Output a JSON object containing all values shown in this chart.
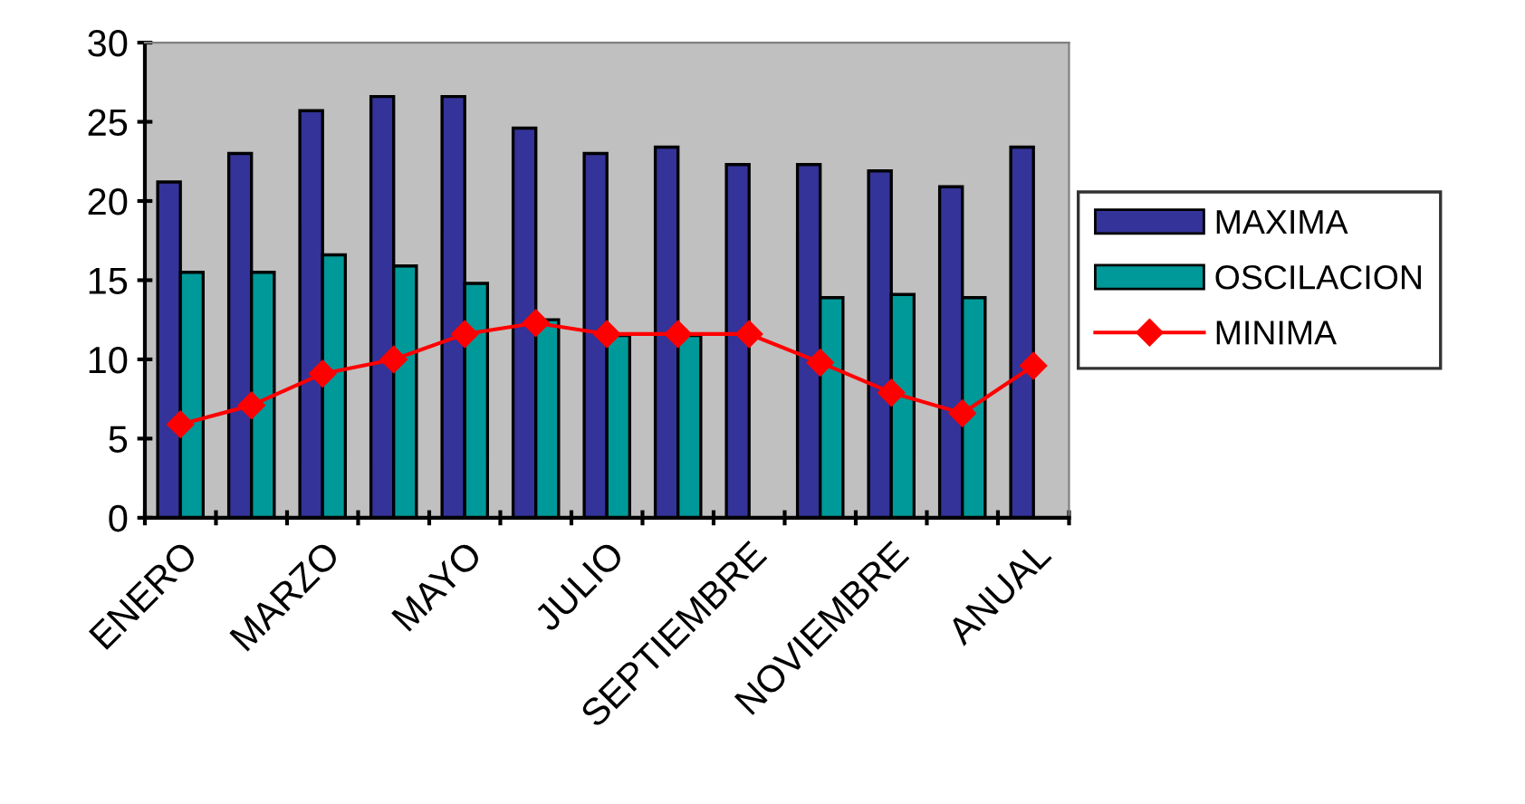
{
  "chart_data": {
    "type": "bar",
    "categories": [
      "ENERO",
      null,
      "MARZO",
      null,
      "MAYO",
      null,
      "JULIO",
      null,
      "SEPTIEMBRE",
      null,
      "NOVIEMBRE",
      null,
      "ANUAL"
    ],
    "series": [
      {
        "name": "MAXIMA",
        "color": "#333399",
        "values": [
          21.2,
          23.0,
          25.7,
          26.6,
          26.6,
          24.6,
          23.0,
          23.4,
          22.3,
          22.3,
          21.9,
          20.9,
          23.4
        ]
      },
      {
        "name": "OSCILACION",
        "color": "#009999",
        "values": [
          15.5,
          15.5,
          16.6,
          15.9,
          14.8,
          12.5,
          11.5,
          11.5,
          null,
          13.9,
          14.1,
          13.9,
          null
        ]
      },
      {
        "name": "MINIMA",
        "type": "line",
        "color": "#ff0000",
        "marker": "diamond",
        "values": [
          5.9,
          7.1,
          9.1,
          10.0,
          11.6,
          12.3,
          11.6,
          11.6,
          11.6,
          9.8,
          7.9,
          6.6,
          9.6
        ]
      }
    ],
    "ylim": [
      0,
      30
    ],
    "yticks": [
      0,
      5,
      10,
      15,
      20,
      25,
      30
    ],
    "grid": false,
    "legend": "right"
  }
}
